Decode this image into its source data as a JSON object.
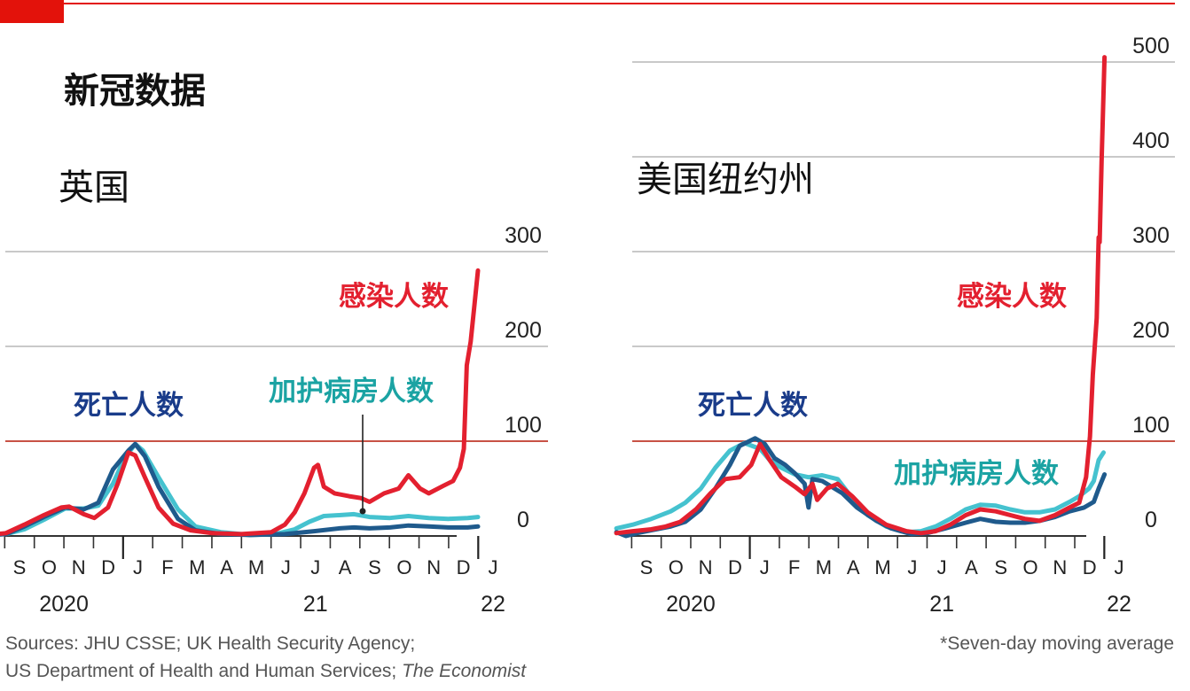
{
  "title": "新冠数据",
  "source_line1": "Sources: JHU CSSE; UK Health Security Agency;",
  "source_line2": "US Department of Health and Human Services;",
  "source_italic": "The Economist",
  "footnote": "*Seven-day moving average",
  "colors": {
    "accent": "#e3120b",
    "cases": "#e3202f",
    "hospital": "#45c2cf",
    "deaths": "#1f5a8c",
    "deaths_label": "#1a3c8a",
    "hospital_label": "#1ba3a3",
    "grid": "#b7b7b7"
  },
  "chart_data": [
    {
      "type": "line",
      "title": "英国",
      "x_month_labels": [
        "S",
        "O",
        "N",
        "D",
        "J",
        "F",
        "M",
        "A",
        "M",
        "J",
        "J",
        "A",
        "S",
        "O",
        "N",
        "D",
        "J"
      ],
      "x_year_labels": [
        {
          "month": "2020-09",
          "label": "2020"
        },
        {
          "month": "2021-07",
          "label": "21"
        },
        {
          "month": "2022-01",
          "label": "22"
        }
      ],
      "xlim": [
        "2020-08-15",
        "2022-01-10"
      ],
      "ylim": [
        0,
        300
      ],
      "yticks": [
        0,
        100,
        200,
        300
      ],
      "reference_line": 100,
      "series": [
        {
          "name": "感染人数",
          "color_key": "cases",
          "points": [
            [
              "2020-08-15",
              1
            ],
            [
              "2020-09-01",
              3
            ],
            [
              "2020-09-20",
              12
            ],
            [
              "2020-10-10",
              22
            ],
            [
              "2020-10-28",
              30
            ],
            [
              "2020-11-05",
              31
            ],
            [
              "2020-11-20",
              23
            ],
            [
              "2020-12-01",
              19
            ],
            [
              "2020-12-15",
              30
            ],
            [
              "2020-12-25",
              55
            ],
            [
              "2021-01-05",
              88
            ],
            [
              "2021-01-12",
              85
            ],
            [
              "2021-01-22",
              62
            ],
            [
              "2021-02-05",
              30
            ],
            [
              "2021-02-20",
              13
            ],
            [
              "2021-03-10",
              6
            ],
            [
              "2021-04-01",
              3
            ],
            [
              "2021-05-01",
              2
            ],
            [
              "2021-06-01",
              4
            ],
            [
              "2021-06-15",
              12
            ],
            [
              "2021-06-25",
              25
            ],
            [
              "2021-07-05",
              45
            ],
            [
              "2021-07-15",
              72
            ],
            [
              "2021-07-19",
              75
            ],
            [
              "2021-07-25",
              52
            ],
            [
              "2021-08-05",
              45
            ],
            [
              "2021-08-20",
              42
            ],
            [
              "2021-09-01",
              40
            ],
            [
              "2021-09-10",
              36
            ],
            [
              "2021-09-25",
              45
            ],
            [
              "2021-10-10",
              50
            ],
            [
              "2021-10-20",
              64
            ],
            [
              "2021-11-01",
              50
            ],
            [
              "2021-11-10",
              45
            ],
            [
              "2021-11-25",
              53
            ],
            [
              "2021-12-05",
              58
            ],
            [
              "2021-12-12",
              72
            ],
            [
              "2021-12-16",
              92
            ],
            [
              "2021-12-19",
              180
            ],
            [
              "2021-12-23",
              205
            ],
            [
              "2021-12-27",
              245
            ],
            [
              "2021-12-31",
              280
            ]
          ]
        },
        {
          "name": "加护病房人数",
          "color_key": "hospital",
          "points": [
            [
              "2020-08-15",
              1
            ],
            [
              "2020-09-01",
              2
            ],
            [
              "2020-09-20",
              7
            ],
            [
              "2020-10-10",
              17
            ],
            [
              "2020-11-01",
              29
            ],
            [
              "2020-11-20",
              29
            ],
            [
              "2020-12-05",
              32
            ],
            [
              "2020-12-20",
              55
            ],
            [
              "2021-01-01",
              82
            ],
            [
              "2021-01-12",
              97
            ],
            [
              "2021-01-20",
              90
            ],
            [
              "2021-02-05",
              62
            ],
            [
              "2021-02-25",
              28
            ],
            [
              "2021-03-15",
              10
            ],
            [
              "2021-04-10",
              4
            ],
            [
              "2021-05-10",
              1
            ],
            [
              "2021-06-05",
              2
            ],
            [
              "2021-06-25",
              7
            ],
            [
              "2021-07-10",
              15
            ],
            [
              "2021-07-25",
              21
            ],
            [
              "2021-08-10",
              22
            ],
            [
              "2021-08-25",
              23
            ],
            [
              "2021-09-10",
              20
            ],
            [
              "2021-10-01",
              19
            ],
            [
              "2021-10-20",
              21
            ],
            [
              "2021-11-10",
              19
            ],
            [
              "2021-11-30",
              18
            ],
            [
              "2021-12-20",
              19
            ],
            [
              "2021-12-31",
              20
            ]
          ]
        },
        {
          "name": "死亡人数",
          "color_key": "deaths",
          "points": [
            [
              "2020-08-15",
              1
            ],
            [
              "2020-09-01",
              2
            ],
            [
              "2020-09-20",
              10
            ],
            [
              "2020-10-10",
              20
            ],
            [
              "2020-11-01",
              30
            ],
            [
              "2020-11-20",
              28
            ],
            [
              "2020-12-05",
              35
            ],
            [
              "2020-12-20",
              70
            ],
            [
              "2021-01-05",
              90
            ],
            [
              "2021-01-12",
              97
            ],
            [
              "2021-01-22",
              84
            ],
            [
              "2021-02-05",
              52
            ],
            [
              "2021-02-25",
              18
            ],
            [
              "2021-03-15",
              6
            ],
            [
              "2021-04-10",
              2
            ],
            [
              "2021-05-10",
              1
            ],
            [
              "2021-06-15",
              2
            ],
            [
              "2021-07-15",
              5
            ],
            [
              "2021-08-10",
              8
            ],
            [
              "2021-08-25",
              9
            ],
            [
              "2021-09-10",
              8
            ],
            [
              "2021-10-01",
              9
            ],
            [
              "2021-10-20",
              11
            ],
            [
              "2021-11-10",
              10
            ],
            [
              "2021-11-30",
              9
            ],
            [
              "2021-12-20",
              9
            ],
            [
              "2021-12-31",
              10
            ]
          ]
        }
      ]
    },
    {
      "type": "line",
      "title": "美国纽约州",
      "x_month_labels": [
        "S",
        "O",
        "N",
        "D",
        "J",
        "F",
        "M",
        "A",
        "M",
        "J",
        "J",
        "A",
        "S",
        "O",
        "N",
        "D",
        "J"
      ],
      "x_year_labels": [
        {
          "month": "2020-09",
          "label": "2020"
        },
        {
          "month": "2021-07",
          "label": "21"
        },
        {
          "month": "2022-01",
          "label": "22"
        }
      ],
      "xlim": [
        "2020-08-15",
        "2022-01-10"
      ],
      "ylim": [
        0,
        500
      ],
      "yticks": [
        0,
        100,
        200,
        300,
        400,
        500
      ],
      "reference_line": 100,
      "series": [
        {
          "name": "感染人数",
          "color_key": "cases",
          "points": [
            [
              "2020-08-15",
              3
            ],
            [
              "2020-09-01",
              5
            ],
            [
              "2020-09-20",
              7
            ],
            [
              "2020-10-05",
              10
            ],
            [
              "2020-10-20",
              15
            ],
            [
              "2020-11-05",
              28
            ],
            [
              "2020-11-20",
              45
            ],
            [
              "2020-12-05",
              60
            ],
            [
              "2020-12-20",
              62
            ],
            [
              "2021-01-01",
              75
            ],
            [
              "2021-01-10",
              97
            ],
            [
              "2021-01-20",
              80
            ],
            [
              "2021-02-01",
              62
            ],
            [
              "2021-02-15",
              52
            ],
            [
              "2021-02-25",
              44
            ],
            [
              "2021-03-05",
              55
            ],
            [
              "2021-03-10",
              38
            ],
            [
              "2021-03-20",
              50
            ],
            [
              "2021-03-31",
              55
            ],
            [
              "2021-04-15",
              42
            ],
            [
              "2021-05-01",
              25
            ],
            [
              "2021-05-20",
              12
            ],
            [
              "2021-06-10",
              5
            ],
            [
              "2021-06-25",
              3
            ],
            [
              "2021-07-10",
              5
            ],
            [
              "2021-07-25",
              12
            ],
            [
              "2021-08-10",
              22
            ],
            [
              "2021-08-25",
              28
            ],
            [
              "2021-09-10",
              26
            ],
            [
              "2021-09-25",
              22
            ],
            [
              "2021-10-10",
              18
            ],
            [
              "2021-10-25",
              16
            ],
            [
              "2021-11-10",
              22
            ],
            [
              "2021-11-25",
              30
            ],
            [
              "2021-12-05",
              35
            ],
            [
              "2021-12-12",
              62
            ],
            [
              "2021-12-16",
              105
            ],
            [
              "2021-12-19",
              170
            ],
            [
              "2021-12-23",
              230
            ],
            [
              "2021-12-25",
              315
            ],
            [
              "2021-12-26",
              310
            ],
            [
              "2021-12-28",
              395
            ],
            [
              "2021-12-31",
              505
            ]
          ]
        },
        {
          "name": "加护病房人数",
          "color_key": "hospital",
          "points": [
            [
              "2020-08-15",
              8
            ],
            [
              "2020-09-01",
              12
            ],
            [
              "2020-09-20",
              18
            ],
            [
              "2020-10-10",
              26
            ],
            [
              "2020-10-25",
              35
            ],
            [
              "2020-11-10",
              50
            ],
            [
              "2020-11-25",
              72
            ],
            [
              "2020-12-10",
              90
            ],
            [
              "2020-12-25",
              98
            ],
            [
              "2021-01-10",
              92
            ],
            [
              "2021-01-20",
              80
            ],
            [
              "2021-02-01",
              72
            ],
            [
              "2021-02-15",
              65
            ],
            [
              "2021-03-01",
              62
            ],
            [
              "2021-03-15",
              64
            ],
            [
              "2021-03-31",
              60
            ],
            [
              "2021-04-15",
              40
            ],
            [
              "2021-05-01",
              22
            ],
            [
              "2021-05-20",
              10
            ],
            [
              "2021-06-10",
              4
            ],
            [
              "2021-06-25",
              5
            ],
            [
              "2021-07-10",
              10
            ],
            [
              "2021-07-25",
              18
            ],
            [
              "2021-08-10",
              28
            ],
            [
              "2021-08-25",
              33
            ],
            [
              "2021-09-10",
              32
            ],
            [
              "2021-09-25",
              28
            ],
            [
              "2021-10-10",
              25
            ],
            [
              "2021-10-25",
              25
            ],
            [
              "2021-11-10",
              28
            ],
            [
              "2021-11-25",
              36
            ],
            [
              "2021-12-05",
              42
            ],
            [
              "2021-12-15",
              50
            ],
            [
              "2021-12-20",
              58
            ],
            [
              "2021-12-25",
              80
            ],
            [
              "2021-12-30",
              88
            ]
          ]
        },
        {
          "name": "死亡人数",
          "color_key": "deaths",
          "points": [
            [
              "2020-08-15",
              4
            ],
            [
              "2020-08-25",
              0
            ],
            [
              "2020-09-05",
              3
            ],
            [
              "2020-09-20",
              6
            ],
            [
              "2020-10-10",
              10
            ],
            [
              "2020-10-25",
              15
            ],
            [
              "2020-11-10",
              28
            ],
            [
              "2020-11-25",
              50
            ],
            [
              "2020-12-10",
              75
            ],
            [
              "2020-12-20",
              95
            ],
            [
              "2021-01-05",
              103
            ],
            [
              "2021-01-15",
              97
            ],
            [
              "2021-01-25",
              82
            ],
            [
              "2021-02-05",
              75
            ],
            [
              "2021-02-15",
              66
            ],
            [
              "2021-02-25",
              55
            ],
            [
              "2021-03-01",
              30
            ],
            [
              "2021-03-05",
              60
            ],
            [
              "2021-03-15",
              58
            ],
            [
              "2021-04-05",
              45
            ],
            [
              "2021-04-20",
              30
            ],
            [
              "2021-05-10",
              16
            ],
            [
              "2021-05-25",
              8
            ],
            [
              "2021-06-15",
              2
            ],
            [
              "2021-07-01",
              3
            ],
            [
              "2021-07-20",
              8
            ],
            [
              "2021-08-10",
              14
            ],
            [
              "2021-08-25",
              18
            ],
            [
              "2021-09-10",
              15
            ],
            [
              "2021-09-25",
              14
            ],
            [
              "2021-10-10",
              14
            ],
            [
              "2021-10-25",
              16
            ],
            [
              "2021-11-10",
              20
            ],
            [
              "2021-11-25",
              26
            ],
            [
              "2021-12-10",
              30
            ],
            [
              "2021-12-20",
              36
            ],
            [
              "2021-12-25",
              50
            ],
            [
              "2021-12-31",
              65
            ]
          ]
        }
      ]
    }
  ]
}
